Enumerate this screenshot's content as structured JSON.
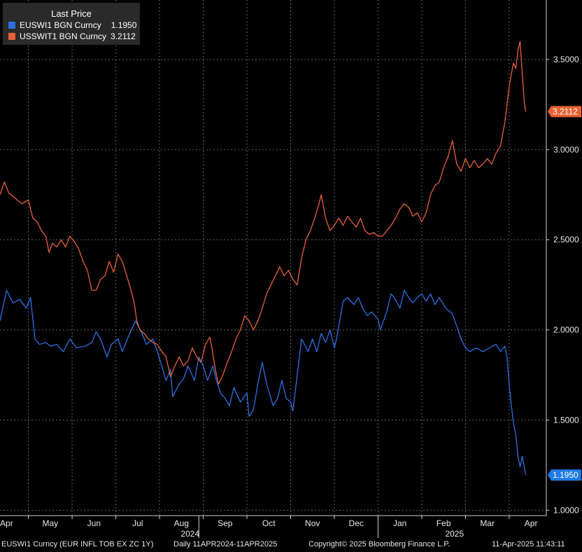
{
  "legend": {
    "title": "Last Price",
    "entries": [
      {
        "name": "EUSWI1 BGN Curncy",
        "value": "1.1950"
      },
      {
        "name": "USSWIT1 BGN Curncy",
        "value": "3.2112"
      }
    ]
  },
  "footer": {
    "ticker": "EUSWI1 Curncy (EUR INFL TOB EX ZC 1Y)",
    "range": "Daily 11APR2024-11APR2025",
    "copyright": "Copyright© 2025 Bloomberg Finance L.P.",
    "timestamp": "11-Apr-2025 11:43:11"
  },
  "colors": {
    "eu": "#2d6fe0",
    "us": "#e8613a",
    "eu_badge": "#1f7ae6",
    "us_badge": "#ea6232"
  },
  "chart_data": {
    "type": "line",
    "title": "Last Price",
    "x_unit": "month index (0 = Apr 2024)",
    "xlim": [
      -0.15,
      12.35
    ],
    "ylim": [
      0.97,
      3.83
    ],
    "x_ticks": [
      {
        "label": "Apr",
        "x": 0
      },
      {
        "label": "May",
        "x": 1
      },
      {
        "label": "Jun",
        "x": 2
      },
      {
        "label": "Jul",
        "x": 3
      },
      {
        "label": "Aug",
        "x": 4
      },
      {
        "label": "Sep",
        "x": 5
      },
      {
        "label": "Oct",
        "x": 6
      },
      {
        "label": "Nov",
        "x": 7
      },
      {
        "label": "Dec",
        "x": 8
      },
      {
        "label": "Jan",
        "x": 9
      },
      {
        "label": "Feb",
        "x": 10
      },
      {
        "label": "Mar",
        "x": 11
      },
      {
        "label": "Apr",
        "x": 12
      }
    ],
    "year_labels": [
      {
        "label": "2024",
        "x": 4.2
      },
      {
        "label": "2025",
        "x": 10.25
      }
    ],
    "year_separators": [
      4.4,
      8.5
    ],
    "y_ticks": [
      "1.0000",
      "1.5000",
      "2.0000",
      "2.5000",
      "3.0000",
      "3.5000"
    ],
    "series": [
      {
        "name": "EUSWI1 BGN Curncy",
        "last_label": "1.1950",
        "points": [
          [
            -0.15,
            2.05
          ],
          [
            0.0,
            2.22
          ],
          [
            0.15,
            2.15
          ],
          [
            0.3,
            2.17
          ],
          [
            0.45,
            2.12
          ],
          [
            0.55,
            2.18
          ],
          [
            0.65,
            1.95
          ],
          [
            0.75,
            1.92
          ],
          [
            0.9,
            1.93
          ],
          [
            1.0,
            1.91
          ],
          [
            1.15,
            1.92
          ],
          [
            1.3,
            1.88
          ],
          [
            1.45,
            1.95
          ],
          [
            1.6,
            1.9
          ],
          [
            1.8,
            1.91
          ],
          [
            1.95,
            1.93
          ],
          [
            2.05,
            1.99
          ],
          [
            2.15,
            1.95
          ],
          [
            2.3,
            1.85
          ],
          [
            2.4,
            1.92
          ],
          [
            2.55,
            1.95
          ],
          [
            2.65,
            1.88
          ],
          [
            2.8,
            1.97
          ],
          [
            2.95,
            2.05
          ],
          [
            3.1,
            1.98
          ],
          [
            3.2,
            1.92
          ],
          [
            3.35,
            1.95
          ],
          [
            3.45,
            1.88
          ],
          [
            3.55,
            1.8
          ],
          [
            3.65,
            1.72
          ],
          [
            3.75,
            1.78
          ],
          [
            3.8,
            1.63
          ],
          [
            3.95,
            1.7
          ],
          [
            4.05,
            1.73
          ],
          [
            4.15,
            1.8
          ],
          [
            4.3,
            1.72
          ],
          [
            4.4,
            1.85
          ],
          [
            4.5,
            1.8
          ],
          [
            4.6,
            1.72
          ],
          [
            4.72,
            1.8
          ],
          [
            4.8,
            1.72
          ],
          [
            4.9,
            1.65
          ],
          [
            5.0,
            1.62
          ],
          [
            5.1,
            1.58
          ],
          [
            5.2,
            1.68
          ],
          [
            5.35,
            1.6
          ],
          [
            5.5,
            1.65
          ],
          [
            5.55,
            1.52
          ],
          [
            5.65,
            1.56
          ],
          [
            5.75,
            1.7
          ],
          [
            5.85,
            1.82
          ],
          [
            5.95,
            1.7
          ],
          [
            6.1,
            1.58
          ],
          [
            6.2,
            1.62
          ],
          [
            6.3,
            1.72
          ],
          [
            6.4,
            1.62
          ],
          [
            6.5,
            1.6
          ],
          [
            6.55,
            1.55
          ],
          [
            6.65,
            1.75
          ],
          [
            6.75,
            1.95
          ],
          [
            6.9,
            1.88
          ],
          [
            7.0,
            1.95
          ],
          [
            7.1,
            1.88
          ],
          [
            7.2,
            1.98
          ],
          [
            7.3,
            1.93
          ],
          [
            7.4,
            2.0
          ],
          [
            7.5,
            1.9
          ],
          [
            7.55,
            1.95
          ],
          [
            7.7,
            2.16
          ],
          [
            7.8,
            2.18
          ],
          [
            7.95,
            2.14
          ],
          [
            8.05,
            2.18
          ],
          [
            8.15,
            2.12
          ],
          [
            8.25,
            2.08
          ],
          [
            8.35,
            2.1
          ],
          [
            8.5,
            2.06
          ],
          [
            8.55,
            2.0
          ],
          [
            8.7,
            2.1
          ],
          [
            8.8,
            2.2
          ],
          [
            8.9,
            2.17
          ],
          [
            9.0,
            2.12
          ],
          [
            9.1,
            2.22
          ],
          [
            9.2,
            2.18
          ],
          [
            9.3,
            2.15
          ],
          [
            9.4,
            2.18
          ],
          [
            9.5,
            2.2
          ],
          [
            9.6,
            2.16
          ],
          [
            9.7,
            2.2
          ],
          [
            9.8,
            2.14
          ],
          [
            9.9,
            2.18
          ],
          [
            10.05,
            2.12
          ],
          [
            10.2,
            2.09
          ],
          [
            10.3,
            2.02
          ],
          [
            10.4,
            1.95
          ],
          [
            10.5,
            1.9
          ],
          [
            10.6,
            1.88
          ],
          [
            10.75,
            1.9
          ],
          [
            10.9,
            1.88
          ],
          [
            11.05,
            1.9
          ],
          [
            11.2,
            1.92
          ],
          [
            11.3,
            1.88
          ],
          [
            11.4,
            1.91
          ],
          [
            11.45,
            1.85
          ],
          [
            11.5,
            1.7
          ],
          [
            11.55,
            1.58
          ],
          [
            11.6,
            1.48
          ],
          [
            11.65,
            1.42
          ],
          [
            11.7,
            1.3
          ],
          [
            11.75,
            1.24
          ],
          [
            11.8,
            1.3
          ],
          [
            11.85,
            1.23
          ],
          [
            11.88,
            1.195
          ]
        ]
      },
      {
        "name": "USSWIT1 BGN Curncy",
        "last_label": "3.2112",
        "points": [
          [
            -0.15,
            2.75
          ],
          [
            -0.05,
            2.82
          ],
          [
            0.05,
            2.76
          ],
          [
            0.2,
            2.73
          ],
          [
            0.35,
            2.7
          ],
          [
            0.5,
            2.72
          ],
          [
            0.6,
            2.62
          ],
          [
            0.7,
            2.6
          ],
          [
            0.8,
            2.55
          ],
          [
            0.9,
            2.52
          ],
          [
            0.97,
            2.43
          ],
          [
            1.05,
            2.48
          ],
          [
            1.15,
            2.46
          ],
          [
            1.25,
            2.5
          ],
          [
            1.35,
            2.46
          ],
          [
            1.45,
            2.52
          ],
          [
            1.55,
            2.49
          ],
          [
            1.65,
            2.45
          ],
          [
            1.75,
            2.38
          ],
          [
            1.85,
            2.33
          ],
          [
            1.95,
            2.22
          ],
          [
            2.05,
            2.22
          ],
          [
            2.15,
            2.28
          ],
          [
            2.25,
            2.3
          ],
          [
            2.35,
            2.38
          ],
          [
            2.45,
            2.32
          ],
          [
            2.55,
            2.42
          ],
          [
            2.65,
            2.38
          ],
          [
            2.75,
            2.3
          ],
          [
            2.85,
            2.22
          ],
          [
            2.92,
            2.15
          ],
          [
            2.98,
            2.05
          ],
          [
            3.05,
            2.0
          ],
          [
            3.15,
            1.98
          ],
          [
            3.25,
            1.95
          ],
          [
            3.35,
            1.93
          ],
          [
            3.45,
            1.92
          ],
          [
            3.55,
            1.88
          ],
          [
            3.65,
            1.85
          ],
          [
            3.75,
            1.74
          ],
          [
            3.85,
            1.8
          ],
          [
            3.95,
            1.85
          ],
          [
            4.05,
            1.8
          ],
          [
            4.15,
            1.83
          ],
          [
            4.25,
            1.9
          ],
          [
            4.35,
            1.85
          ],
          [
            4.45,
            1.82
          ],
          [
            4.55,
            1.92
          ],
          [
            4.65,
            1.96
          ],
          [
            4.7,
            1.9
          ],
          [
            4.75,
            1.82
          ],
          [
            4.8,
            1.75
          ],
          [
            4.85,
            1.7
          ],
          [
            4.95,
            1.75
          ],
          [
            5.05,
            1.82
          ],
          [
            5.15,
            1.88
          ],
          [
            5.25,
            1.95
          ],
          [
            5.35,
            2.0
          ],
          [
            5.45,
            2.08
          ],
          [
            5.55,
            2.05
          ],
          [
            5.65,
            2.0
          ],
          [
            5.75,
            2.05
          ],
          [
            5.85,
            2.12
          ],
          [
            5.95,
            2.2
          ],
          [
            6.05,
            2.25
          ],
          [
            6.15,
            2.3
          ],
          [
            6.25,
            2.35
          ],
          [
            6.35,
            2.3
          ],
          [
            6.45,
            2.33
          ],
          [
            6.55,
            2.28
          ],
          [
            6.65,
            2.25
          ],
          [
            6.75,
            2.4
          ],
          [
            6.85,
            2.5
          ],
          [
            6.95,
            2.55
          ],
          [
            7.05,
            2.62
          ],
          [
            7.15,
            2.7
          ],
          [
            7.2,
            2.75
          ],
          [
            7.3,
            2.62
          ],
          [
            7.4,
            2.55
          ],
          [
            7.5,
            2.58
          ],
          [
            7.6,
            2.62
          ],
          [
            7.7,
            2.58
          ],
          [
            7.8,
            2.63
          ],
          [
            7.9,
            2.6
          ],
          [
            8.0,
            2.57
          ],
          [
            8.1,
            2.62
          ],
          [
            8.2,
            2.55
          ],
          [
            8.3,
            2.53
          ],
          [
            8.4,
            2.54
          ],
          [
            8.5,
            2.52
          ],
          [
            8.6,
            2.52
          ],
          [
            8.7,
            2.55
          ],
          [
            8.8,
            2.58
          ],
          [
            8.9,
            2.62
          ],
          [
            9.0,
            2.67
          ],
          [
            9.1,
            2.7
          ],
          [
            9.2,
            2.68
          ],
          [
            9.3,
            2.63
          ],
          [
            9.4,
            2.65
          ],
          [
            9.5,
            2.6
          ],
          [
            9.6,
            2.65
          ],
          [
            9.7,
            2.75
          ],
          [
            9.8,
            2.8
          ],
          [
            9.9,
            2.82
          ],
          [
            10.0,
            2.9
          ],
          [
            10.1,
            2.96
          ],
          [
            10.2,
            3.05
          ],
          [
            10.3,
            2.92
          ],
          [
            10.4,
            2.88
          ],
          [
            10.5,
            2.95
          ],
          [
            10.6,
            2.9
          ],
          [
            10.7,
            2.94
          ],
          [
            10.8,
            2.9
          ],
          [
            10.9,
            2.92
          ],
          [
            11.0,
            2.95
          ],
          [
            11.1,
            2.92
          ],
          [
            11.2,
            2.98
          ],
          [
            11.3,
            3.02
          ],
          [
            11.4,
            3.15
          ],
          [
            11.45,
            3.25
          ],
          [
            11.5,
            3.35
          ],
          [
            11.55,
            3.42
          ],
          [
            11.6,
            3.48
          ],
          [
            11.65,
            3.45
          ],
          [
            11.7,
            3.55
          ],
          [
            11.75,
            3.6
          ],
          [
            11.8,
            3.42
          ],
          [
            11.85,
            3.25
          ],
          [
            11.88,
            3.2112
          ]
        ]
      }
    ]
  }
}
